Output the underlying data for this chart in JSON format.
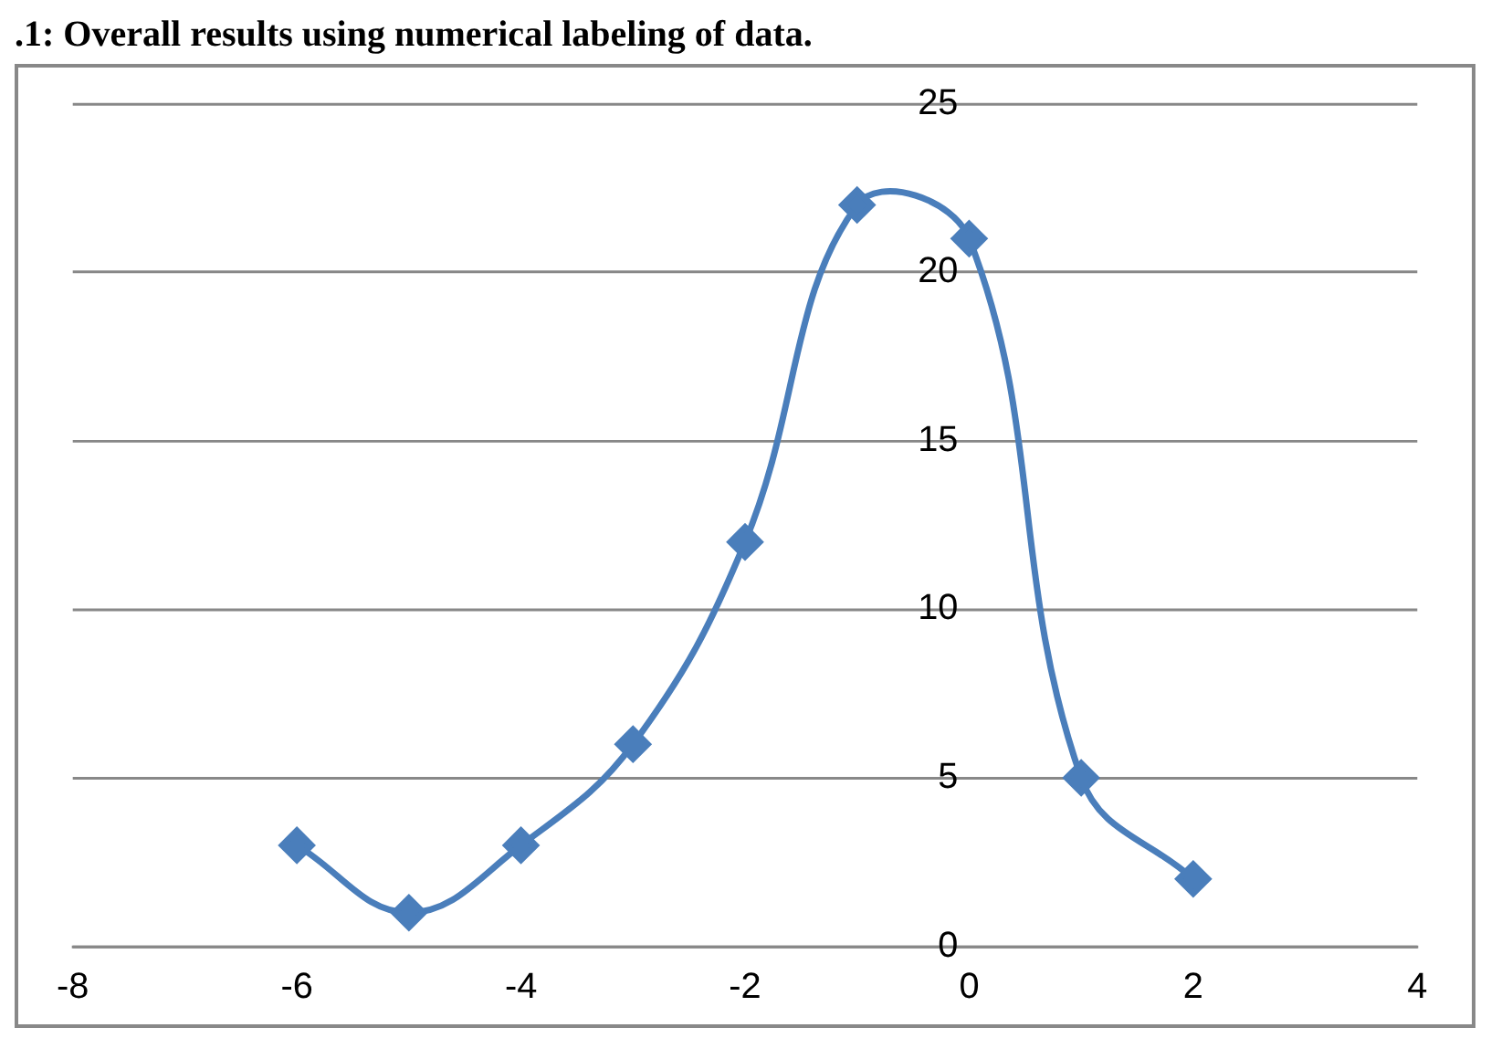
{
  "chart_data": {
    "type": "line",
    "title": ".1: Overall results using numerical labeling of data.",
    "x": [
      -6,
      -5,
      -4,
      -3,
      -2,
      -1,
      0,
      1,
      2
    ],
    "series": [
      {
        "color": "#4a7ebb",
        "values": [
          3,
          1,
          3,
          6,
          12,
          22,
          21,
          5,
          2
        ]
      }
    ],
    "xlim": [
      -8,
      4
    ],
    "xticks": [
      -8,
      -6,
      -4,
      -2,
      0,
      2,
      4
    ],
    "ylim": [
      0,
      25
    ],
    "yticks": [
      0,
      5,
      10,
      15,
      20,
      25
    ],
    "grid": "y",
    "legend": false,
    "marker": "diamond",
    "line_style": "solid"
  }
}
